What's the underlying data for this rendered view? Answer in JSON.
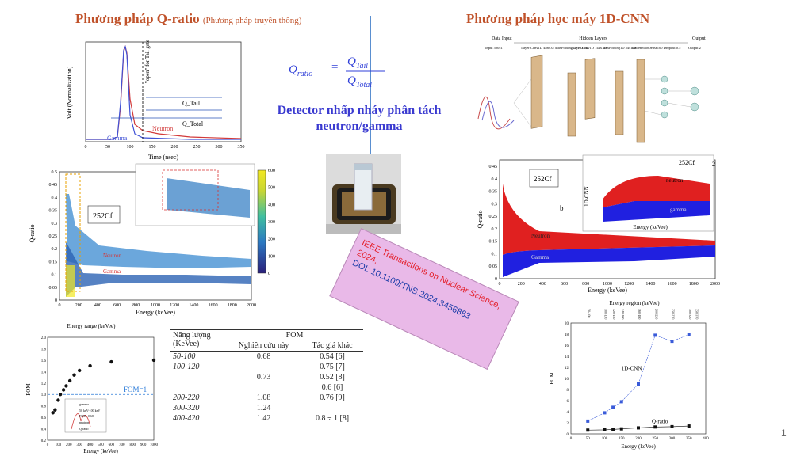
{
  "left_title": "Phương pháp Q-ratio",
  "left_subtitle": "(Phương pháp truyền thống)",
  "right_title": "Phương pháp học máy 1D-CNN",
  "formula": {
    "lhs_base": "Q",
    "lhs_sub": "ratio",
    "num_base": "Q",
    "num_sub": "Tail",
    "den_base": "Q",
    "den_sub": "Total"
  },
  "detector_title": "Detector nhấp nháy phân tách neutron/gamma",
  "publication": {
    "journal": "IEEE Transactions on Nuclear Science, 2024.",
    "doi": "DOI: 10.1109/TNS.2024.3456863"
  },
  "page_number": "1",
  "pulse_plot": {
    "ylabel": "Volt (Normalization)",
    "xlabel": "Time (nsec)",
    "xticks": [
      "0",
      "50",
      "100",
      "150",
      "200",
      "250",
      "300",
      "350"
    ],
    "gate_label": "\"open\" for Tail gate",
    "q_tail_label": "Q_Tail",
    "q_total_label": "Q_Total",
    "neutron_label": "Neutron",
    "gamma_label": "Gamma"
  },
  "psd_left": {
    "ylabel": "Q-ratio",
    "xlabel": "Energy (keVee)",
    "source_label": "252Cf",
    "yticks": [
      "0",
      "0.05",
      "0.1",
      "0.15",
      "0.2",
      "0.25",
      "0.3",
      "0.35",
      "0.4",
      "0.45",
      "0.5"
    ],
    "xticks": [
      "0",
      "200",
      "400",
      "600",
      "800",
      "1000",
      "1200",
      "1400",
      "1600",
      "1800",
      "2000"
    ],
    "colorbar_ticks": [
      "0",
      "100",
      "200",
      "300",
      "400",
      "500",
      "600"
    ],
    "neutron_label": "Neutron",
    "gamma_label": "Gamma"
  },
  "psd_right": {
    "ylabel": "Q-ratio",
    "xlabel": "Energy (keVee)",
    "source_label": "252Cf",
    "panel_label": "b",
    "yticks": [
      "0",
      "0.05",
      "0.1",
      "0.15",
      "0.2",
      "0.25",
      "0.3",
      "0.35",
      "0.4",
      "0.45"
    ],
    "xticks": [
      "0",
      "200",
      "400",
      "600",
      "800",
      "1000",
      "1200",
      "1400",
      "1600",
      "1800",
      "2000"
    ],
    "neutron_label": "Neutron",
    "gamma_label": "Gamma",
    "inset": {
      "ylabel": "1D-CNN",
      "xlabel": "Energy (keVee)",
      "source_label": "252Cf",
      "neutron_label": "neutron",
      "gamma_label": "gamma",
      "panel_label": "2"
    }
  },
  "cnn_diagram": {
    "labels": [
      "Data Input",
      "Hidden Layers",
      "Output"
    ],
    "layers": [
      "Input 500x1",
      "Layer Conv1D 486x32",
      "MaxPooling1D 162x32",
      "Layer Conv1D 144x128",
      "MaxPooling1D 54x128",
      "Flatten 6400",
      "Dense100 Dropout 0.5",
      "Output 2"
    ]
  },
  "chart_data": [
    {
      "type": "scatter",
      "title": "",
      "xlabel": "Energy (keVee)",
      "ylabel": "FOM",
      "top_axis_label": "Energy range (keVee)",
      "x": [
        50,
        70,
        100,
        120,
        150,
        175,
        210,
        250,
        300,
        400,
        600,
        1000
      ],
      "y": [
        0.68,
        0.73,
        0.9,
        1.0,
        1.08,
        1.15,
        1.24,
        1.34,
        1.42,
        1.5,
        1.57,
        1.6
      ],
      "xlim": [
        0,
        1000
      ],
      "ylim": [
        0.2,
        2.0
      ],
      "xticks": [
        "0",
        "100",
        "200",
        "300",
        "400",
        "500",
        "600",
        "700",
        "800",
        "900",
        "1000"
      ],
      "yticks": [
        "0.2",
        "0.4",
        "0.6",
        "0.8",
        "1.0",
        "1.2",
        "1.4",
        "1.6",
        "1.8",
        "2.0"
      ],
      "reference_line": {
        "y": 1.0,
        "label": "FOM=1"
      },
      "inset_labels": [
        "gamma",
        "50 keV-100 keV",
        "FOM=0.68",
        "neutron",
        "Q-ratio"
      ]
    },
    {
      "type": "line",
      "title": "",
      "xlabel": "Energy (keVee)",
      "ylabel": "FOM",
      "top_axis_label": "Energy region (keVee)",
      "top_ticks": [
        "50-100",
        "100-120",
        "120-140",
        "140-160",
        "160-180",
        "200-220",
        "250-270",
        "300-320",
        "350-370"
      ],
      "x": [
        50,
        100,
        125,
        150,
        200,
        250,
        300,
        350
      ],
      "series": [
        {
          "name": "1D-CNN",
          "color": "#3a5bd9",
          "values": [
            2.3,
            3.8,
            4.8,
            5.8,
            9.0,
            17.8,
            16.7,
            17.9
          ]
        },
        {
          "name": "Q-ratio",
          "color": "#111111",
          "values": [
            0.68,
            0.73,
            0.8,
            0.9,
            1.08,
            1.24,
            1.3,
            1.42
          ]
        }
      ],
      "xlim": [
        0,
        400
      ],
      "ylim": [
        0,
        20
      ],
      "xticks": [
        "0",
        "50",
        "100",
        "150",
        "200",
        "250",
        "300",
        "350",
        "400"
      ],
      "yticks": [
        "0",
        "2",
        "4",
        "6",
        "8",
        "10",
        "12",
        "14",
        "16",
        "18",
        "20"
      ]
    }
  ],
  "fom_table": {
    "headers": {
      "energy": "Năng lượng (KeVee)",
      "fom": "FOM",
      "this_work": "Nghiên cứu này",
      "others": "Tác giả khác"
    },
    "rows": [
      {
        "energy": "50-100",
        "this": "0.68",
        "others": "0.54  [6]"
      },
      {
        "energy": "100-120",
        "this": "",
        "others": "0.75 [7]"
      },
      {
        "energy": "",
        "this": "0.73",
        "others": "0.52 [8]"
      },
      {
        "energy": "",
        "this": "",
        "others": "0.6    [6]"
      },
      {
        "energy": "200-220",
        "this": "1.08",
        "others": "0.76 [9]"
      },
      {
        "energy": "300-320",
        "this": "1.24",
        "others": ""
      },
      {
        "energy": "400-420",
        "this": "1.42",
        "others": "0.8 ÷ 1 [8]"
      }
    ]
  }
}
